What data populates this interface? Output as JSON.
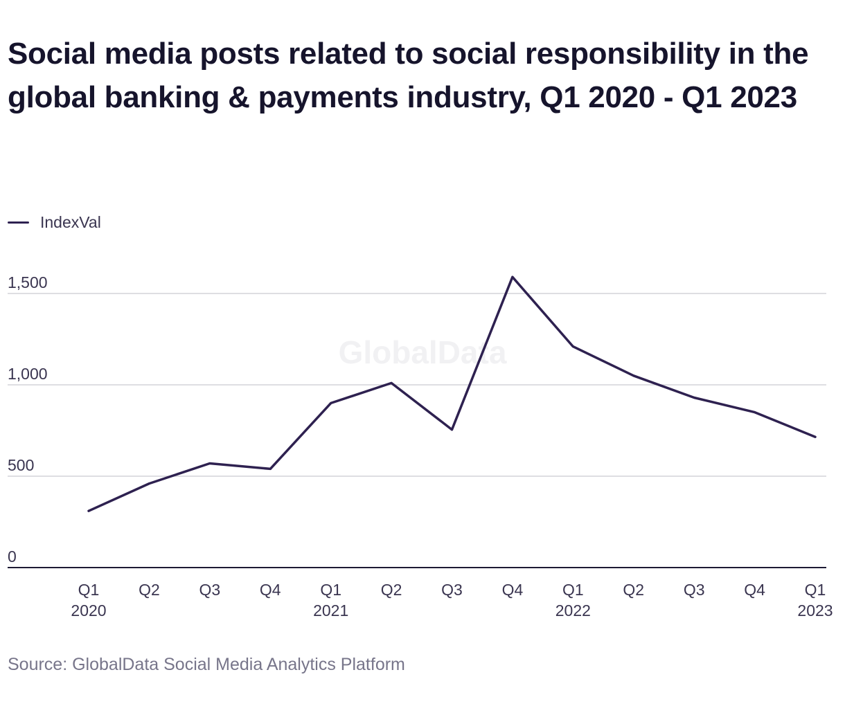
{
  "title": "Social media posts related to social responsibility in the global banking & payments industry, Q1 2020 - Q1 2023",
  "watermark": "GlobalData",
  "source": "Source: GlobalData Social Media Analytics Platform",
  "colors": {
    "line": "#2e2150",
    "grid": "#d4d4d8",
    "axis": "#1d1a33",
    "watermark": "#f1f1f3"
  },
  "chart_data": {
    "type": "line",
    "categories": [
      [
        "Q1",
        "2020"
      ],
      [
        "Q2"
      ],
      [
        "Q3"
      ],
      [
        "Q4"
      ],
      [
        "Q1",
        "2021"
      ],
      [
        "Q2"
      ],
      [
        "Q3"
      ],
      [
        "Q4"
      ],
      [
        "Q1",
        "2022"
      ],
      [
        "Q2"
      ],
      [
        "Q3"
      ],
      [
        "Q4"
      ],
      [
        "Q1",
        "2023"
      ]
    ],
    "series": [
      {
        "name": "IndexVal",
        "values": [
          310,
          460,
          570,
          540,
          900,
          1010,
          755,
          1590,
          1210,
          1050,
          930,
          850,
          715
        ]
      }
    ],
    "yticks": [
      0,
      500,
      1000,
      1500
    ],
    "ytick_labels": [
      "0",
      "500",
      "1,000",
      "1,500"
    ],
    "ylim": [
      0,
      1500
    ],
    "grid": true,
    "legend_position": "top-left",
    "xlabel": "",
    "ylabel": ""
  }
}
